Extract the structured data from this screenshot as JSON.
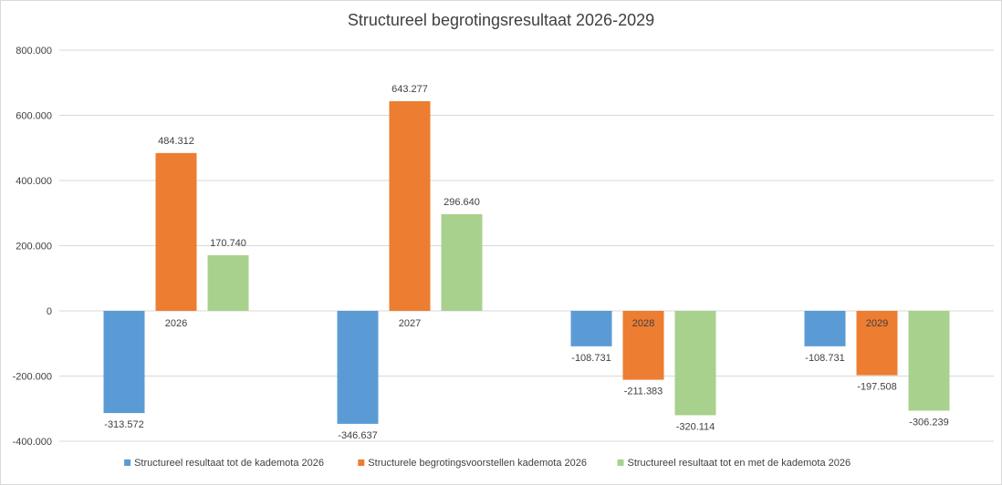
{
  "chart_data": {
    "type": "bar",
    "title": "Structureel begrotingsresultaat 2026-2029",
    "categories": [
      "2026",
      "2027",
      "2028",
      "2029"
    ],
    "ylim": [
      -400000,
      800000
    ],
    "yticks": [
      800000,
      600000,
      400000,
      200000,
      0,
      -200000,
      -400000
    ],
    "ytick_labels": [
      "800.000",
      "600.000",
      "400.000",
      "200.000",
      "0",
      "-200.000",
      "-400.000"
    ],
    "grid": true,
    "legend_position": "bottom",
    "series": [
      {
        "name": "Structureel resultaat tot de kademota 2026",
        "color": "#5b9bd5",
        "values": [
          -313572,
          -346637,
          -108731,
          -108731
        ],
        "labels": [
          "-313.572",
          "-346.637",
          "-108.731",
          "-108.731"
        ]
      },
      {
        "name": "Structurele begrotingsvoorstellen kademota 2026",
        "color": "#ed7d31",
        "values": [
          484312,
          643277,
          -211383,
          -197508
        ],
        "labels": [
          "484.312",
          "643.277",
          "-211.383",
          "-197.508"
        ]
      },
      {
        "name": "Structureel resultaat tot en met de kademota 2026",
        "color": "#a9d18e",
        "values": [
          170740,
          296640,
          -320114,
          -306239
        ],
        "labels": [
          "170.740",
          "296.640",
          "-320.114",
          "-306.239"
        ]
      }
    ]
  }
}
